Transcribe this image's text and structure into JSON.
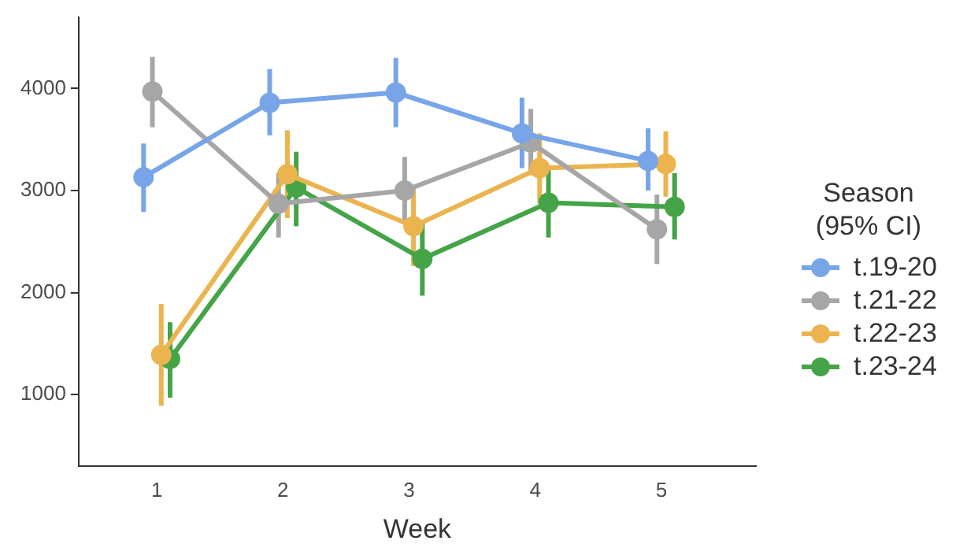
{
  "chart_data": {
    "type": "line",
    "xlabel": "Week",
    "legend_title": "Season\n(95% CI)",
    "categories": [
      "1",
      "2",
      "3",
      "4",
      "5"
    ],
    "ylim": [
      300,
      4700
    ],
    "yticks": [
      1000,
      2000,
      3000,
      4000
    ],
    "grid": false,
    "legend": "right",
    "marker": "circle",
    "line_style": "solid",
    "series": [
      {
        "name": "t.19-20",
        "color": "#77a5e8",
        "values": [
          3130,
          3860,
          3960,
          3560,
          3290
        ],
        "errors": [
          [
            2790,
            3460
          ],
          [
            3540,
            4190
          ],
          [
            3620,
            4300
          ],
          [
            3220,
            3910
          ],
          [
            3000,
            3610
          ]
        ]
      },
      {
        "name": "t.21-22",
        "color": "#a6a6a6",
        "values": [
          3970,
          2870,
          3000,
          3470,
          2620
        ],
        "errors": [
          [
            3620,
            4310
          ],
          [
            2540,
            3170
          ],
          [
            2670,
            3330
          ],
          [
            3150,
            3800
          ],
          [
            2280,
            2960
          ]
        ]
      },
      {
        "name": "t.22-23",
        "color": "#ebb44f",
        "values": [
          1390,
          3160,
          2650,
          3220,
          3260
        ],
        "errors": [
          [
            890,
            1890
          ],
          [
            2730,
            3590
          ],
          [
            2260,
            3040
          ],
          [
            2880,
            3560
          ],
          [
            2940,
            3580
          ]
        ]
      },
      {
        "name": "t.23-24",
        "color": "#44a447",
        "values": [
          1350,
          3030,
          2330,
          2880,
          2840
        ],
        "errors": [
          [
            970,
            1710
          ],
          [
            2650,
            3380
          ],
          [
            1970,
            2700
          ],
          [
            2540,
            3220
          ],
          [
            2520,
            3170
          ]
        ]
      }
    ]
  }
}
